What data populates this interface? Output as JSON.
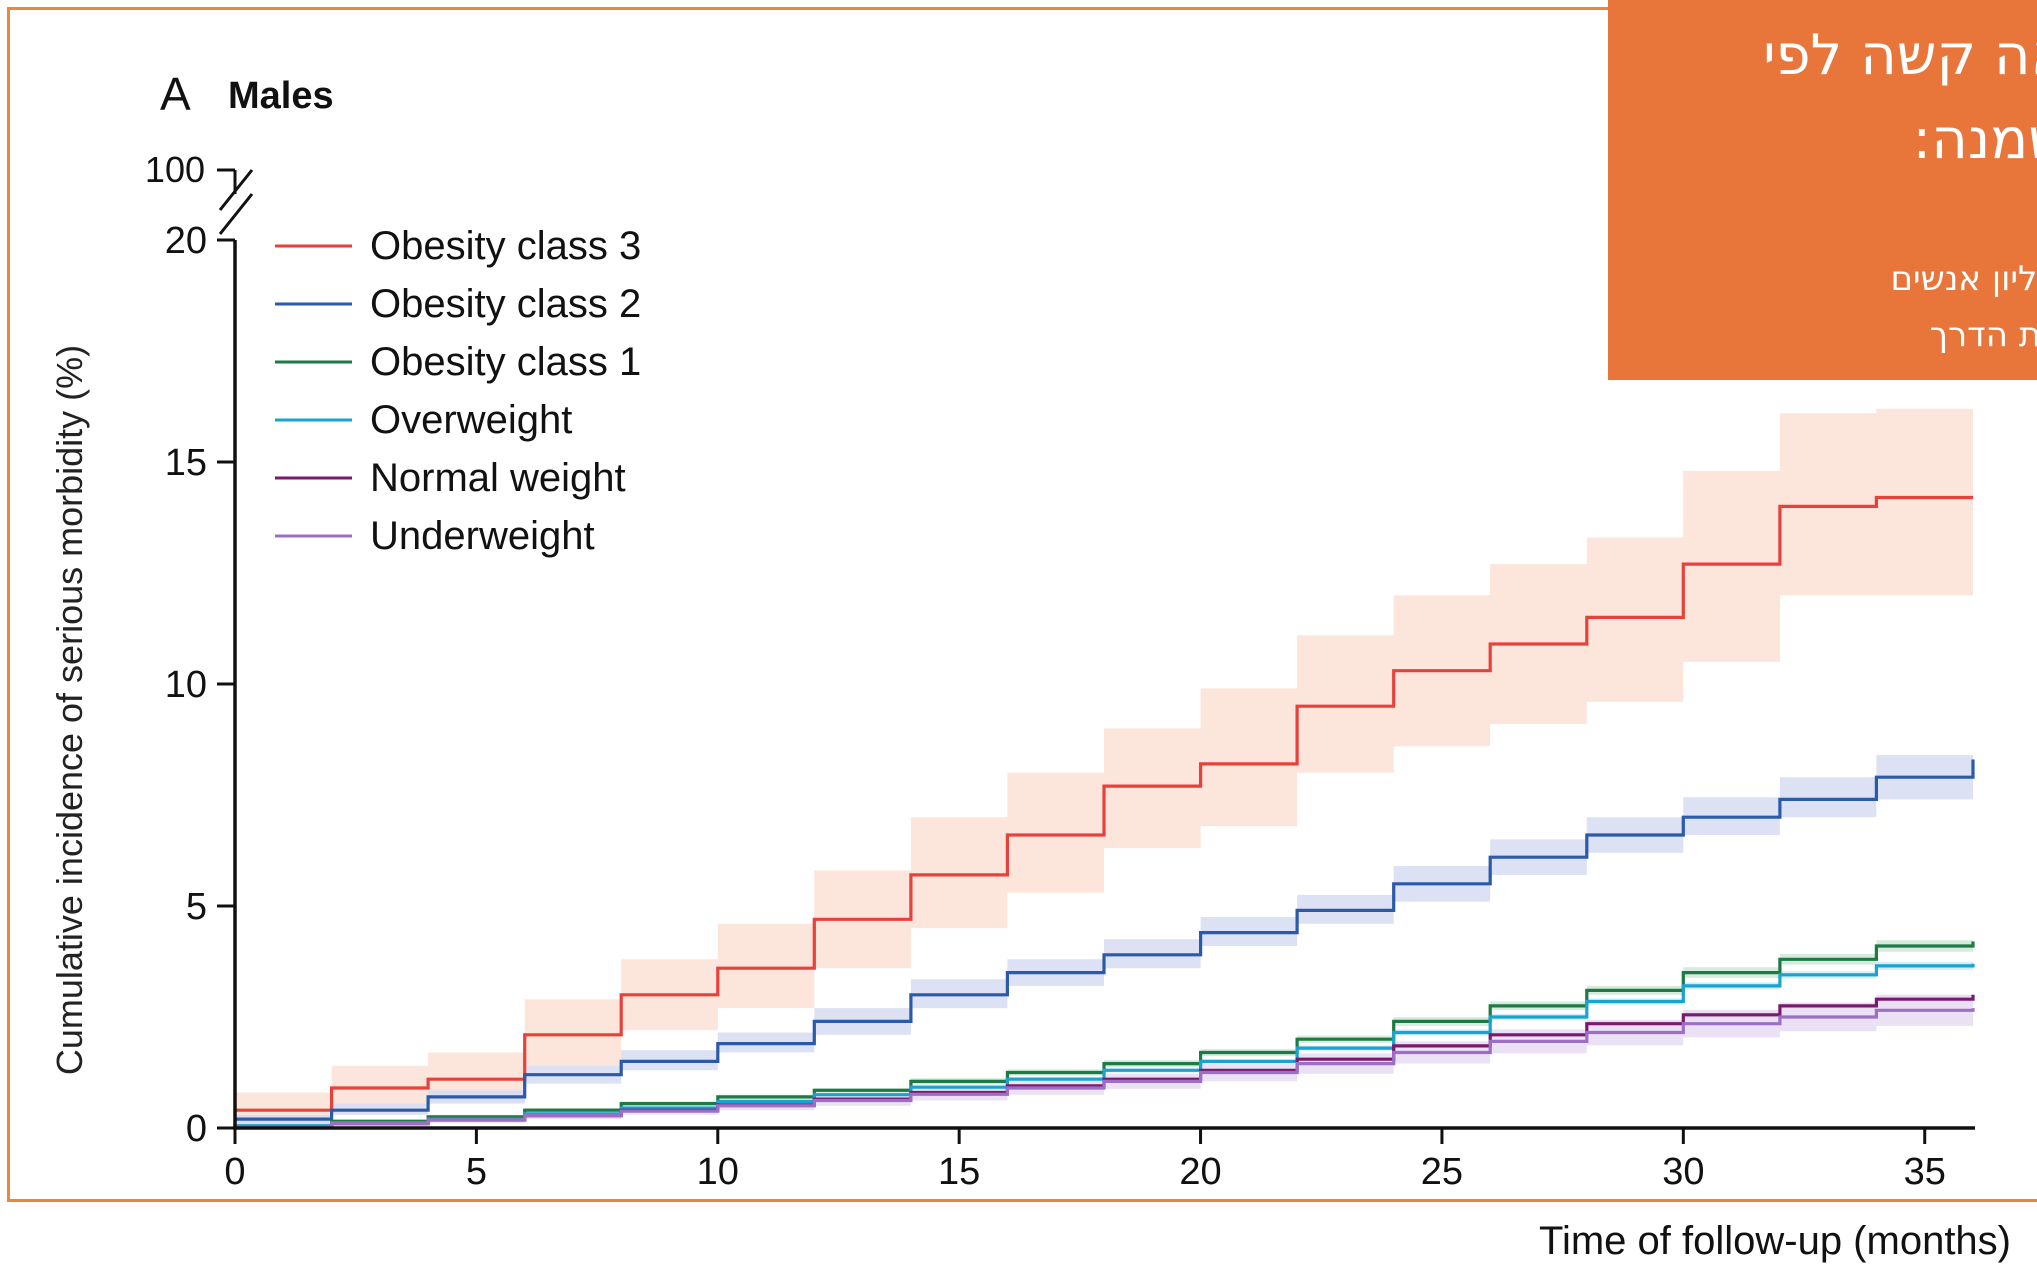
{
  "chart_data": {
    "type": "line",
    "panel_letter": "A",
    "title": "Males",
    "xlabel": "Time of follow-up (months)",
    "ylabel": "Cumulative incidence of serious morbidity (%)",
    "xlim": [
      0,
      36
    ],
    "ylim": [
      0,
      20
    ],
    "y_break_top_label": "100",
    "x_ticks": [
      "0",
      "5",
      "10",
      "15",
      "20",
      "25",
      "30",
      "35"
    ],
    "y_ticks": [
      "0",
      "5",
      "10",
      "15",
      "20"
    ],
    "legend_position": "top-left",
    "x": [
      0,
      2,
      4,
      6,
      8,
      10,
      12,
      14,
      16,
      18,
      20,
      22,
      24,
      26,
      28,
      30,
      32,
      34,
      36
    ],
    "series": [
      {
        "name": "Obesity class 3",
        "color": "#e8413c",
        "band_color": "#fbe0d3",
        "values": [
          0.4,
          0.9,
          1.1,
          2.1,
          3.0,
          3.6,
          4.7,
          5.7,
          6.6,
          7.7,
          8.2,
          9.5,
          10.3,
          10.9,
          11.5,
          12.7,
          14.0,
          14.2,
          14.2
        ],
        "lower": [
          0.1,
          0.5,
          0.6,
          1.4,
          2.2,
          2.7,
          3.6,
          4.5,
          5.3,
          6.3,
          6.8,
          8.0,
          8.6,
          9.1,
          9.6,
          10.5,
          12.0,
          12.0,
          12.0
        ],
        "upper": [
          0.8,
          1.4,
          1.7,
          2.9,
          3.8,
          4.6,
          5.8,
          7.0,
          8.0,
          9.0,
          9.9,
          11.1,
          12.0,
          12.7,
          13.3,
          14.8,
          16.1,
          16.2,
          16.2
        ]
      },
      {
        "name": "Obesity class 2",
        "color": "#2a5aa8",
        "band_color": "#d6dcf2",
        "values": [
          0.2,
          0.4,
          0.7,
          1.2,
          1.5,
          1.9,
          2.4,
          3.0,
          3.5,
          3.9,
          4.4,
          4.9,
          5.5,
          6.1,
          6.6,
          7.0,
          7.4,
          7.9,
          8.3
        ],
        "lower": [
          0.1,
          0.3,
          0.55,
          1.0,
          1.3,
          1.7,
          2.1,
          2.7,
          3.2,
          3.6,
          4.1,
          4.6,
          5.1,
          5.7,
          6.2,
          6.6,
          7.0,
          7.4,
          7.7
        ],
        "upper": [
          0.3,
          0.55,
          0.85,
          1.4,
          1.75,
          2.15,
          2.7,
          3.35,
          3.8,
          4.25,
          4.75,
          5.25,
          5.9,
          6.5,
          7.0,
          7.45,
          7.9,
          8.4,
          8.9
        ]
      },
      {
        "name": "Obesity class 1",
        "color": "#1e7a45",
        "band_color": "#cfe6d7",
        "values": [
          0.05,
          0.15,
          0.25,
          0.4,
          0.55,
          0.7,
          0.85,
          1.05,
          1.25,
          1.45,
          1.7,
          2.0,
          2.4,
          2.75,
          3.1,
          3.5,
          3.8,
          4.1,
          4.2
        ],
        "lower": [
          0.0,
          0.1,
          0.2,
          0.35,
          0.5,
          0.65,
          0.8,
          0.98,
          1.18,
          1.37,
          1.62,
          1.92,
          2.3,
          2.65,
          3.0,
          3.38,
          3.68,
          3.97,
          4.05
        ],
        "upper": [
          0.1,
          0.2,
          0.3,
          0.45,
          0.6,
          0.75,
          0.9,
          1.12,
          1.32,
          1.53,
          1.78,
          2.08,
          2.5,
          2.85,
          3.2,
          3.62,
          3.92,
          4.23,
          4.35
        ]
      },
      {
        "name": "Overweight",
        "color": "#1aa3d0",
        "band_color": "#cdeaf4",
        "values": [
          0.05,
          0.12,
          0.2,
          0.32,
          0.45,
          0.6,
          0.75,
          0.92,
          1.1,
          1.3,
          1.5,
          1.8,
          2.15,
          2.5,
          2.85,
          3.2,
          3.45,
          3.65,
          3.7
        ],
        "lower": [
          0.0,
          0.08,
          0.16,
          0.28,
          0.41,
          0.56,
          0.71,
          0.88,
          1.05,
          1.25,
          1.45,
          1.74,
          2.08,
          2.43,
          2.78,
          3.12,
          3.37,
          3.56,
          3.6
        ],
        "upper": [
          0.1,
          0.16,
          0.24,
          0.36,
          0.49,
          0.64,
          0.79,
          0.96,
          1.15,
          1.35,
          1.55,
          1.86,
          2.22,
          2.57,
          2.92,
          3.28,
          3.53,
          3.74,
          3.8
        ]
      },
      {
        "name": "Normal weight",
        "color": "#7a1a6e",
        "band_color": "#e6cfe2",
        "values": [
          0.03,
          0.1,
          0.18,
          0.28,
          0.4,
          0.52,
          0.65,
          0.8,
          0.95,
          1.1,
          1.3,
          1.55,
          1.85,
          2.1,
          2.35,
          2.55,
          2.75,
          2.9,
          3.0
        ],
        "lower": [
          0.0,
          0.07,
          0.15,
          0.25,
          0.36,
          0.48,
          0.61,
          0.76,
          0.91,
          1.06,
          1.26,
          1.5,
          1.8,
          2.05,
          2.29,
          2.48,
          2.68,
          2.82,
          2.9
        ],
        "upper": [
          0.06,
          0.13,
          0.21,
          0.31,
          0.44,
          0.56,
          0.69,
          0.84,
          0.99,
          1.14,
          1.34,
          1.6,
          1.9,
          2.15,
          2.41,
          2.62,
          2.82,
          2.98,
          3.1
        ]
      },
      {
        "name": "Underweight",
        "color": "#9c6fc4",
        "band_color": "#e7dcf3",
        "values": [
          0.03,
          0.1,
          0.18,
          0.28,
          0.38,
          0.5,
          0.62,
          0.76,
          0.9,
          1.05,
          1.25,
          1.45,
          1.7,
          1.95,
          2.15,
          2.35,
          2.5,
          2.65,
          2.7
        ],
        "lower": [
          0.0,
          0.05,
          0.12,
          0.2,
          0.3,
          0.4,
          0.5,
          0.62,
          0.75,
          0.88,
          1.05,
          1.22,
          1.45,
          1.68,
          1.86,
          2.04,
          2.18,
          2.3,
          2.35
        ],
        "upper": [
          0.08,
          0.15,
          0.24,
          0.36,
          0.46,
          0.6,
          0.74,
          0.9,
          1.05,
          1.22,
          1.45,
          1.68,
          1.95,
          2.22,
          2.44,
          2.66,
          2.82,
          3.0,
          3.05
        ]
      }
    ]
  },
  "callout": {
    "line1": "אה קשה לפי",
    "line2": "שמנה:",
    "line3": "מיליון אנשים",
    "line4": "ילת הדרך",
    "background": "#e8753a"
  },
  "caption": {
    "text": "Time of follow-up (months)"
  }
}
